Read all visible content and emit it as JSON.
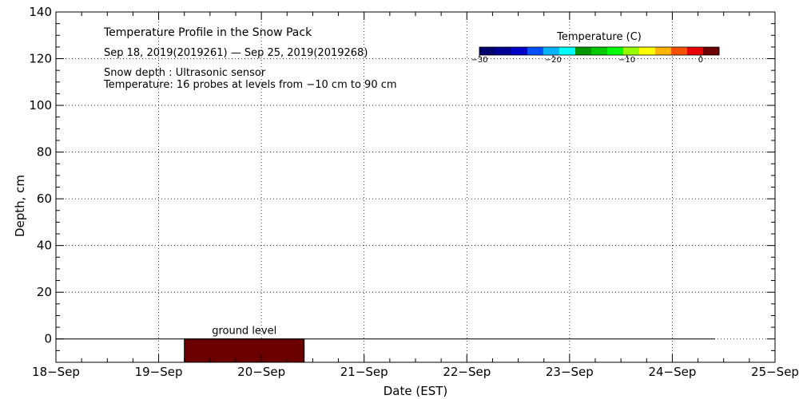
{
  "chart_data": {
    "type": "heatmap",
    "title": "Temperature Profile in the Snow Pack",
    "subtitle": "Sep 18, 2019(2019261) — Sep 25, 2019(2019268)",
    "notes": [
      "Snow depth : Ultrasonic sensor",
      "Temperature: 16 probes at levels from −10 cm to 90 cm"
    ],
    "xlabel": "Date (EST)",
    "ylabel": "Depth, cm",
    "x_ticks": [
      "18−Sep",
      "19−Sep",
      "20−Sep",
      "21−Sep",
      "22−Sep",
      "23−Sep",
      "24−Sep",
      "25−Sep"
    ],
    "xlim": [
      "2019-09-18",
      "2019-09-25"
    ],
    "y_ticks": [
      "0",
      "20",
      "40",
      "60",
      "80",
      "100",
      "120",
      "140"
    ],
    "ylim": [
      -10,
      140
    ],
    "grid": true,
    "ground_level_label": "ground level",
    "ground_level_depth": 0,
    "ground_line_range": [
      "2019-09-18 00:00",
      "2019-09-24 10:00"
    ],
    "temperature_block": {
      "start": "2019-09-19 06:00",
      "end": "2019-09-20 10:00",
      "depth_top": 0,
      "depth_bottom": -10,
      "color": "#6a0000"
    },
    "colorbar": {
      "title": "Temperature (C)",
      "labels": [
        "−30",
        "−20",
        "−10",
        "0"
      ],
      "label_values": [
        -30,
        -20,
        -10,
        0
      ],
      "range": [
        -30,
        2.5
      ],
      "colors": [
        "#00006e",
        "#000096",
        "#0000c8",
        "#0050ff",
        "#00b4ff",
        "#00ffff",
        "#009600",
        "#00c800",
        "#00ff00",
        "#96ff00",
        "#ffff00",
        "#ffb400",
        "#ff5000",
        "#e60000",
        "#6a0000"
      ]
    }
  }
}
